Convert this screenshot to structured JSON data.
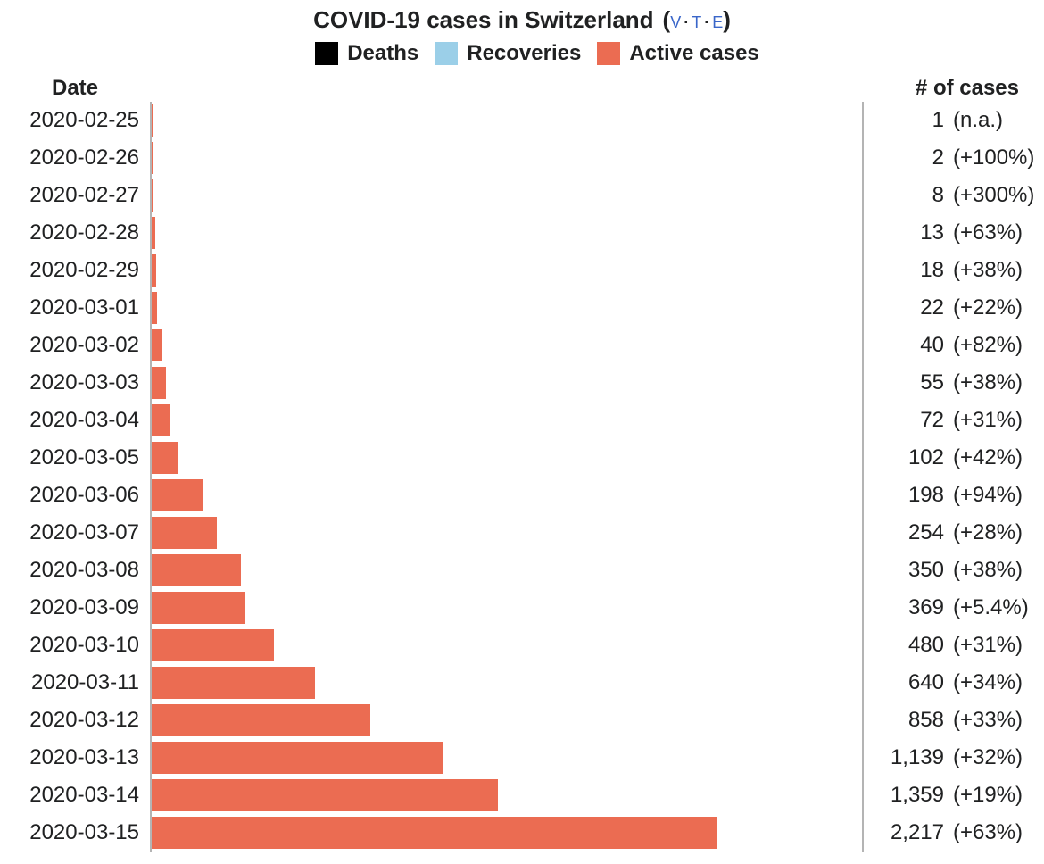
{
  "colors": {
    "text": "#202122",
    "link": "#3A66C9",
    "axis_line": "#B4B4B4",
    "bar": "#EB6C52"
  },
  "navbar": {
    "open_paren": "(",
    "close_paren": ")",
    "separator": "·",
    "links": [
      "v",
      "t",
      "e"
    ]
  },
  "chart_data": {
    "type": "bar",
    "orientation": "horizontal",
    "title": "COVID-19 cases in Switzerland",
    "legend": [
      {
        "label": "Deaths",
        "color": "#000000"
      },
      {
        "label": "Recoveries",
        "color": "#9BCFE8"
      },
      {
        "label": "Active cases",
        "color": "#EB6C52"
      }
    ],
    "legend_position": "top-center",
    "grid": false,
    "column_headers": {
      "left": "Date",
      "right": "# of cases"
    },
    "bar_series": "Active cases",
    "bar_scale_max": 2785,
    "rows": [
      {
        "date": "2020-02-25",
        "value": 1,
        "count": "1",
        "change": "(n.a.)"
      },
      {
        "date": "2020-02-26",
        "value": 2,
        "count": "2",
        "change": "(+100%)"
      },
      {
        "date": "2020-02-27",
        "value": 8,
        "count": "8",
        "change": "(+300%)"
      },
      {
        "date": "2020-02-28",
        "value": 13,
        "count": "13",
        "change": "(+63%)"
      },
      {
        "date": "2020-02-29",
        "value": 18,
        "count": "18",
        "change": "(+38%)"
      },
      {
        "date": "2020-03-01",
        "value": 22,
        "count": "22",
        "change": "(+22%)"
      },
      {
        "date": "2020-03-02",
        "value": 40,
        "count": "40",
        "change": "(+82%)"
      },
      {
        "date": "2020-03-03",
        "value": 55,
        "count": "55",
        "change": "(+38%)"
      },
      {
        "date": "2020-03-04",
        "value": 72,
        "count": "72",
        "change": "(+31%)"
      },
      {
        "date": "2020-03-05",
        "value": 102,
        "count": "102",
        "change": "(+42%)"
      },
      {
        "date": "2020-03-06",
        "value": 198,
        "count": "198",
        "change": "(+94%)"
      },
      {
        "date": "2020-03-07",
        "value": 254,
        "count": "254",
        "change": "(+28%)"
      },
      {
        "date": "2020-03-08",
        "value": 350,
        "count": "350",
        "change": "(+38%)"
      },
      {
        "date": "2020-03-09",
        "value": 369,
        "count": "369",
        "change": "(+5.4%)"
      },
      {
        "date": "2020-03-10",
        "value": 480,
        "count": "480",
        "change": "(+31%)"
      },
      {
        "date": "2020-03-11",
        "value": 640,
        "count": "640",
        "change": "(+34%)"
      },
      {
        "date": "2020-03-12",
        "value": 858,
        "count": "858",
        "change": "(+33%)"
      },
      {
        "date": "2020-03-13",
        "value": 1139,
        "count": "1,139",
        "change": "(+32%)"
      },
      {
        "date": "2020-03-14",
        "value": 1359,
        "count": "1,359",
        "change": "(+19%)"
      },
      {
        "date": "2020-03-15",
        "value": 2217,
        "count": "2,217",
        "change": "(+63%)"
      }
    ]
  }
}
